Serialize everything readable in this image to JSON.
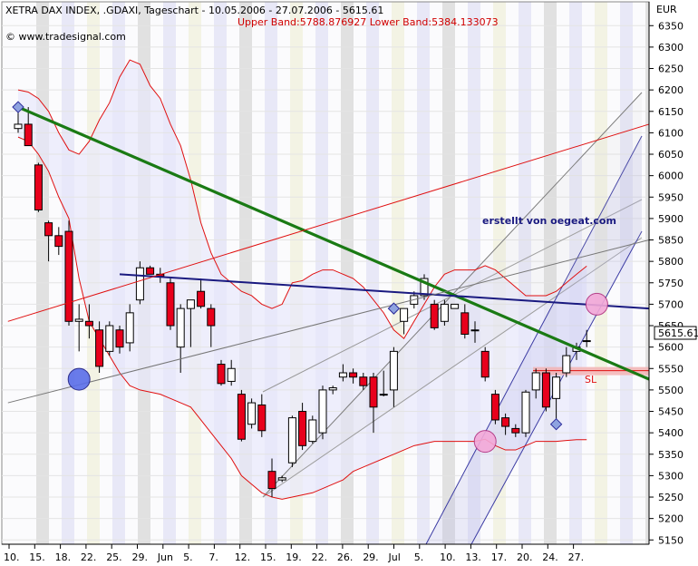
{
  "header": {
    "title": "XETRA DAX INDEX, .GDAXI, Tageschart - 10.05.2006 - 27.07.2006 - 5615.61",
    "bands": "Upper Band:5788.876927 Lower Band:5384.133073",
    "source": "© www.tradesignal.com",
    "currency": "EUR",
    "annotation": "erstellt von oegeat.com",
    "sl_label": "SL",
    "last_price": "5615.61"
  },
  "colors": {
    "up_candle": "#ffffff",
    "down_candle": "#e8001c",
    "trendline_green": "#1a7a14",
    "trendline_navy": "#1a1a80",
    "bollinger": "#e01010",
    "channel_blue": "#2a2a9a",
    "band_fill": "#e8e8fb",
    "stripe_gray": "#dcdcdc",
    "stripe_blue": "#e4e4f6",
    "stripe_yellow": "#f1f1df"
  },
  "chart_data": {
    "type": "candlestick",
    "title": "XETRA DAX INDEX, .GDAXI, Tageschart - 10.05.2006 - 27.07.2006 - 5615.61",
    "ylabel": "EUR",
    "ylim": [
      5140,
      6405
    ],
    "yticks": [
      5150,
      5200,
      5250,
      5300,
      5350,
      5400,
      5450,
      5500,
      5550,
      5600,
      5650,
      5700,
      5750,
      5800,
      5850,
      5900,
      5950,
      6000,
      6050,
      6100,
      6150,
      6200,
      6250,
      6300,
      6350
    ],
    "xtick_labels": [
      "10.",
      "15.",
      "18.",
      "22.",
      "25.",
      "29.",
      "Jun",
      "5.",
      "7.",
      "12.",
      "15.",
      "19.",
      "22.",
      "26.",
      "29.",
      "Jul",
      "5.",
      "10.",
      "13.",
      "17.",
      "20.",
      "24.",
      "27."
    ],
    "candles": [
      {
        "o": 6110,
        "h": 6150,
        "l": 6100,
        "c": 6120
      },
      {
        "o": 6120,
        "h": 6160,
        "l": 6070,
        "c": 6070
      },
      {
        "o": 6025,
        "h": 6030,
        "l": 5915,
        "c": 5920
      },
      {
        "o": 5890,
        "h": 5895,
        "l": 5800,
        "c": 5860
      },
      {
        "o": 5860,
        "h": 5880,
        "l": 5815,
        "c": 5835
      },
      {
        "o": 5870,
        "h": 5895,
        "l": 5650,
        "c": 5660
      },
      {
        "o": 5660,
        "h": 5700,
        "l": 5590,
        "c": 5665
      },
      {
        "o": 5660,
        "h": 5700,
        "l": 5620,
        "c": 5650
      },
      {
        "o": 5640,
        "h": 5660,
        "l": 5540,
        "c": 5555
      },
      {
        "o": 5590,
        "h": 5660,
        "l": 5580,
        "c": 5650
      },
      {
        "o": 5640,
        "h": 5650,
        "l": 5585,
        "c": 5600
      },
      {
        "o": 5610,
        "h": 5700,
        "l": 5590,
        "c": 5680
      },
      {
        "o": 5710,
        "h": 5800,
        "l": 5700,
        "c": 5785
      },
      {
        "o": 5785,
        "h": 5790,
        "l": 5770,
        "c": 5770
      },
      {
        "o": 5770,
        "h": 5785,
        "l": 5750,
        "c": 5765
      },
      {
        "o": 5750,
        "h": 5760,
        "l": 5640,
        "c": 5650
      },
      {
        "o": 5600,
        "h": 5700,
        "l": 5540,
        "c": 5690
      },
      {
        "o": 5690,
        "h": 5710,
        "l": 5600,
        "c": 5710
      },
      {
        "o": 5730,
        "h": 5760,
        "l": 5690,
        "c": 5695
      },
      {
        "o": 5690,
        "h": 5700,
        "l": 5600,
        "c": 5650
      },
      {
        "o": 5560,
        "h": 5570,
        "l": 5510,
        "c": 5515
      },
      {
        "o": 5520,
        "h": 5570,
        "l": 5510,
        "c": 5550
      },
      {
        "o": 5490,
        "h": 5500,
        "l": 5380,
        "c": 5385
      },
      {
        "o": 5420,
        "h": 5480,
        "l": 5410,
        "c": 5470
      },
      {
        "o": 5465,
        "h": 5490,
        "l": 5390,
        "c": 5405
      },
      {
        "o": 5310,
        "h": 5340,
        "l": 5250,
        "c": 5270
      },
      {
        "o": 5290,
        "h": 5300,
        "l": 5285,
        "c": 5295
      },
      {
        "o": 5330,
        "h": 5440,
        "l": 5320,
        "c": 5435
      },
      {
        "o": 5450,
        "h": 5470,
        "l": 5360,
        "c": 5370
      },
      {
        "o": 5380,
        "h": 5440,
        "l": 5375,
        "c": 5430
      },
      {
        "o": 5400,
        "h": 5510,
        "l": 5385,
        "c": 5500
      },
      {
        "o": 5500,
        "h": 5510,
        "l": 5490,
        "c": 5505
      },
      {
        "o": 5530,
        "h": 5560,
        "l": 5520,
        "c": 5540
      },
      {
        "o": 5540,
        "h": 5550,
        "l": 5515,
        "c": 5530
      },
      {
        "o": 5530,
        "h": 5540,
        "l": 5500,
        "c": 5510
      },
      {
        "o": 5530,
        "h": 5540,
        "l": 5400,
        "c": 5460
      },
      {
        "o": 5490,
        "h": 5545,
        "l": 5485,
        "c": 5490
      },
      {
        "o": 5500,
        "h": 5600,
        "l": 5460,
        "c": 5590
      },
      {
        "o": 5660,
        "h": 5690,
        "l": 5630,
        "c": 5690
      },
      {
        "o": 5700,
        "h": 5730,
        "l": 5690,
        "c": 5720
      },
      {
        "o": 5720,
        "h": 5770,
        "l": 5710,
        "c": 5760
      },
      {
        "o": 5700,
        "h": 5710,
        "l": 5640,
        "c": 5645
      },
      {
        "o": 5660,
        "h": 5710,
        "l": 5650,
        "c": 5700
      },
      {
        "o": 5690,
        "h": 5700,
        "l": 5690,
        "c": 5700
      },
      {
        "o": 5680,
        "h": 5700,
        "l": 5620,
        "c": 5630
      },
      {
        "o": 5640,
        "h": 5660,
        "l": 5610,
        "c": 5640
      },
      {
        "o": 5590,
        "h": 5600,
        "l": 5520,
        "c": 5530
      },
      {
        "o": 5490,
        "h": 5500,
        "l": 5420,
        "c": 5430
      },
      {
        "o": 5435,
        "h": 5445,
        "l": 5395,
        "c": 5415
      },
      {
        "o": 5410,
        "h": 5420,
        "l": 5390,
        "c": 5400
      },
      {
        "o": 5400,
        "h": 5500,
        "l": 5390,
        "c": 5495
      },
      {
        "o": 5500,
        "h": 5550,
        "l": 5480,
        "c": 5540
      },
      {
        "o": 5540,
        "h": 5550,
        "l": 5450,
        "c": 5460
      },
      {
        "o": 5480,
        "h": 5540,
        "l": 5430,
        "c": 5530
      },
      {
        "o": 5540,
        "h": 5600,
        "l": 5530,
        "c": 5580
      },
      {
        "o": 5590,
        "h": 5610,
        "l": 5570,
        "c": 5600
      },
      {
        "o": 5615,
        "h": 5640,
        "l": 5600,
        "c": 5615
      }
    ],
    "upper_band": [
      6200,
      6195,
      6180,
      6150,
      6100,
      6060,
      6050,
      6080,
      6130,
      6170,
      6230,
      6270,
      6260,
      6210,
      6180,
      6120,
      6070,
      5990,
      5890,
      5820,
      5770,
      5750,
      5730,
      5720,
      5700,
      5690,
      5700,
      5750,
      5755,
      5770,
      5780,
      5780,
      5770,
      5760,
      5740,
      5710,
      5680,
      5640,
      5620,
      5660,
      5700,
      5740,
      5770,
      5780,
      5780,
      5780,
      5790,
      5780,
      5760,
      5740,
      5720,
      5720,
      5720,
      5730,
      5750,
      5770,
      5789
    ],
    "lower_band": [
      6090,
      6080,
      6050,
      6010,
      5950,
      5900,
      5760,
      5660,
      5620,
      5580,
      5540,
      5510,
      5500,
      5495,
      5490,
      5480,
      5470,
      5460,
      5430,
      5400,
      5370,
      5340,
      5300,
      5280,
      5260,
      5250,
      5245,
      5250,
      5255,
      5260,
      5270,
      5280,
      5290,
      5310,
      5320,
      5330,
      5340,
      5350,
      5360,
      5370,
      5375,
      5380,
      5380,
      5380,
      5380,
      5380,
      5385,
      5370,
      5360,
      5360,
      5370,
      5380,
      5380,
      5380,
      5382,
      5384,
      5384
    ],
    "trendlines": [
      {
        "name": "green",
        "from": [
          0,
          6160
        ],
        "to": [
          69,
          5525
        ]
      },
      {
        "name": "navy",
        "from": [
          10,
          5770
        ],
        "to": [
          70,
          5690
        ]
      },
      {
        "name": "red_up",
        "from": [
          -1,
          5660
        ],
        "to": [
          71,
          6120
        ]
      },
      {
        "name": "gray_up",
        "from": [
          -1,
          5470
        ],
        "to": [
          71,
          5850
        ]
      }
    ],
    "markers": [
      {
        "i": 0,
        "v": 6160,
        "type": "diamond"
      },
      {
        "i": 6,
        "v": 5525,
        "type": "circle-blue"
      },
      {
        "i": 37,
        "v": 5690,
        "type": "diamond"
      },
      {
        "i": 46,
        "v": 5380,
        "type": "circle-pink"
      },
      {
        "i": 53,
        "v": 5420,
        "type": "diamond"
      },
      {
        "i": 57,
        "v": 5700,
        "type": "circle-pink"
      }
    ],
    "sl_level": 5545
  }
}
